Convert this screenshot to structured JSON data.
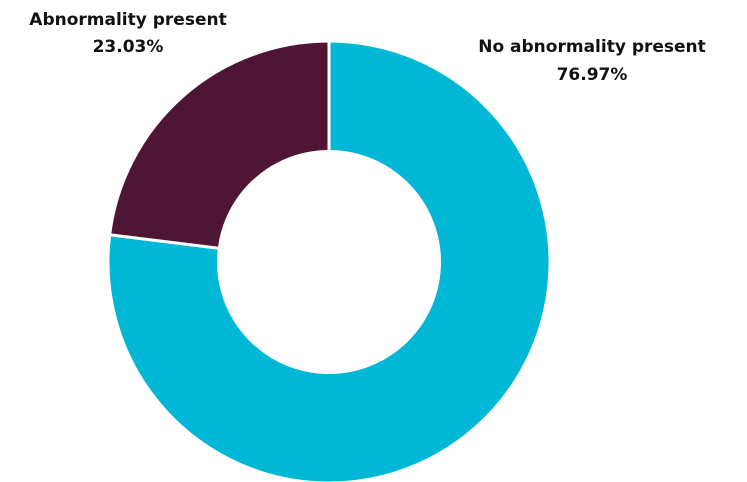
{
  "chart_data": {
    "type": "pie",
    "donut": true,
    "slices": [
      {
        "label": "No abnormality present",
        "value": 76.97,
        "value_label": "76.97%",
        "color": "#00B8D6"
      },
      {
        "label": "Abnormality present",
        "value": 23.03,
        "value_label": "23.03%",
        "color": "#4F1535"
      }
    ],
    "start_angle_deg": 0,
    "direction": "clockwise",
    "legend": "none",
    "label_placement": "outside"
  }
}
